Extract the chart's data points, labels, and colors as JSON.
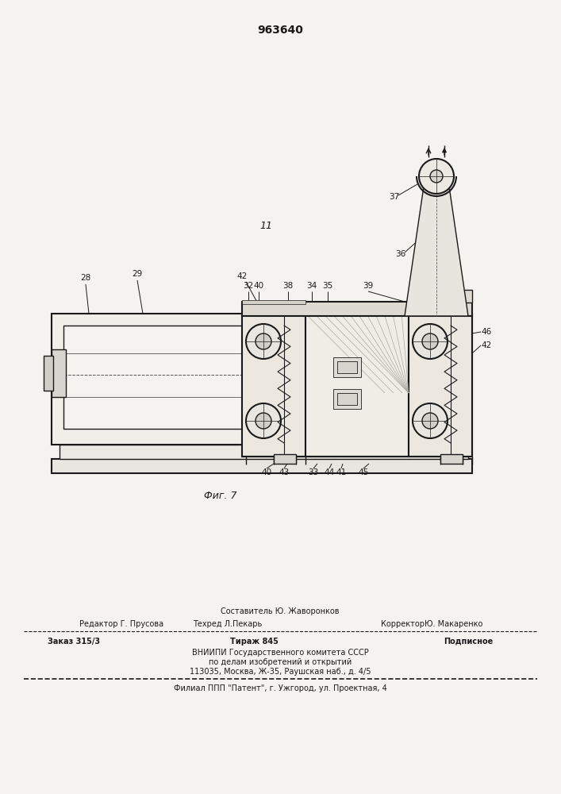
{
  "patent_number": "963640",
  "fig_label": "Фиг. 7",
  "bg_color": "#f5f3f0",
  "line_color": "#1a1a1a",
  "editor_line": "Редактор Г. Прусова",
  "composer_line": "Составитель Ю. Жаворонков",
  "techred_line": "Техред Л.Пекарь",
  "corrector_line": "КорректорЮ. Макаренко",
  "order_line": "Заказ 315/3",
  "tirazh_line": "Тираж 845",
  "podpisnoe_line": "Подписное",
  "vniip1": "ВНИИПИ Государственного комитета СССР",
  "vniip2": "по делам изобретений и открытий",
  "vniip3": "113035, Москва, Ж-35, Раушская наб., д. 4/5",
  "filial": "Филиал ППП \"Патент\", г. Ужгород, ул. Проектная, 4"
}
